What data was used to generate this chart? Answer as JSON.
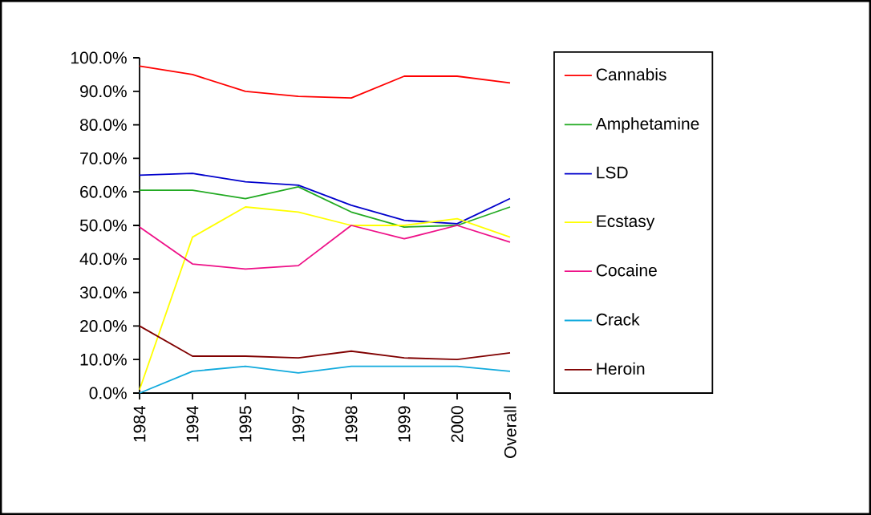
{
  "chart_data": {
    "type": "line",
    "categories": [
      "1984",
      "1994",
      "1995",
      "1997",
      "1998",
      "1999",
      "2000",
      "Overall"
    ],
    "series": [
      {
        "name": "Cannabis",
        "color": "#ff0000",
        "values": [
          97.5,
          95,
          90,
          88.5,
          88,
          94.5,
          94.5,
          92.5
        ]
      },
      {
        "name": "Amphetamine",
        "color": "#22aa22",
        "values": [
          60.5,
          60.5,
          58,
          61.5,
          54,
          49.5,
          50,
          55.5
        ]
      },
      {
        "name": "LSD",
        "color": "#0000cc",
        "values": [
          65,
          65.5,
          63,
          62,
          56,
          51.5,
          50.5,
          58
        ]
      },
      {
        "name": "Ecstasy",
        "color": "#ffff00",
        "values": [
          1,
          46.5,
          55.5,
          54,
          50,
          50,
          52,
          46.5
        ]
      },
      {
        "name": "Cocaine",
        "color": "#ee1188",
        "values": [
          49.5,
          38.5,
          37,
          38,
          50,
          46,
          50,
          45
        ]
      },
      {
        "name": "Crack",
        "color": "#11aadd",
        "values": [
          0,
          6.5,
          8,
          6,
          8,
          8,
          8,
          6.5
        ]
      },
      {
        "name": "Heroin",
        "color": "#800000",
        "values": [
          20,
          11,
          11,
          10.5,
          12.5,
          10.5,
          10,
          12
        ]
      }
    ],
    "ylim": [
      0,
      100
    ],
    "yticks": [
      {
        "value": 0,
        "label": "0.0%"
      },
      {
        "value": 10,
        "label": "10.0%"
      },
      {
        "value": 20,
        "label": "20.0%"
      },
      {
        "value": 30,
        "label": "30.0%"
      },
      {
        "value": 40,
        "label": "40.0%"
      },
      {
        "value": 50,
        "label": "50.0%"
      },
      {
        "value": 60,
        "label": "60.0%"
      },
      {
        "value": 70,
        "label": "70.0%"
      },
      {
        "value": 80,
        "label": "80.0%"
      },
      {
        "value": 90,
        "label": "90.0%"
      },
      {
        "value": 100,
        "label": "100.0%"
      }
    ],
    "legend": "right",
    "grid": false
  }
}
